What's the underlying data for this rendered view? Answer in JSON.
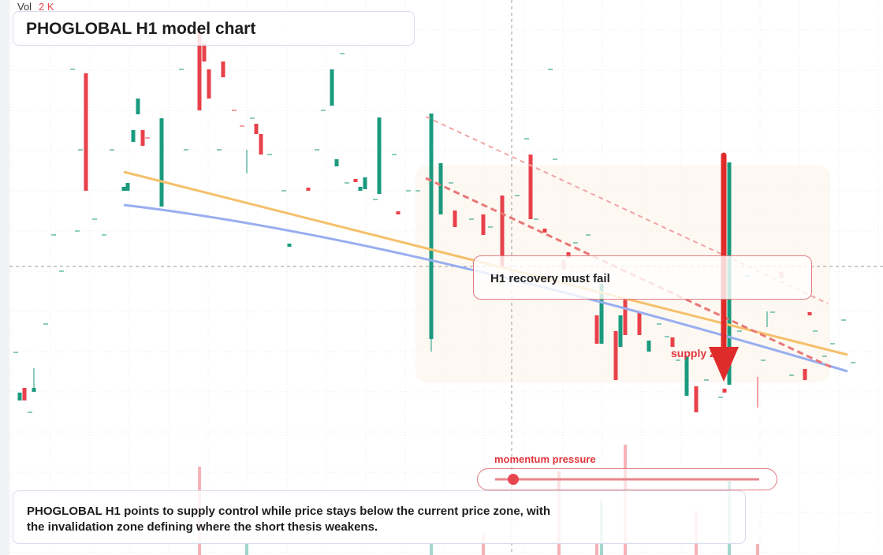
{
  "header": {
    "title": "PHOGLOBAL H1 model chart",
    "volume_label": "Vol",
    "volume_value": "2 K"
  },
  "annotations": {
    "note": "H1 recovery must fail",
    "zone": "supply zone",
    "indicator": "momentum pressure"
  },
  "caption": "PHOGLOBAL H1 points to supply control while price stays below the current price zone, with the invalidation zone defining where the short thesis weakens."
}
